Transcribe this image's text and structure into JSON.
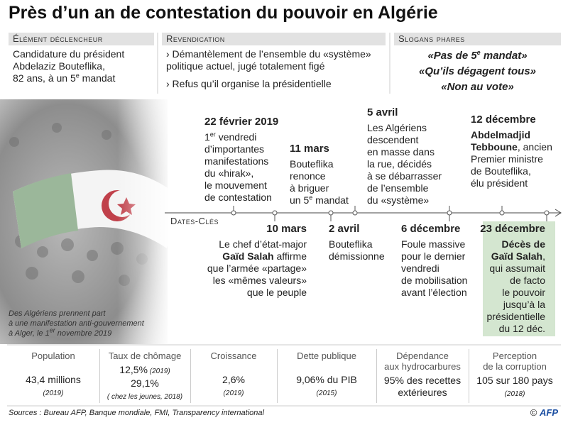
{
  "title": "Près d’un an de contestation du pouvoir en Algérie",
  "panels": [
    {
      "heading": "Élément déclencheur",
      "lines": [
        [
          "Candidature du président"
        ],
        [
          "Abdelaziz Bouteflika,"
        ],
        [
          "82 ans, à un 5",
          "e",
          " mandat"
        ]
      ]
    },
    {
      "heading": "Revendication",
      "lines": [
        [
          "› Démantèlement de l’ensemble du «système»"
        ],
        [
          "politique actuel, jugé totalement figé"
        ],
        [
          "› Refus qu’il organise la présidentielle"
        ]
      ]
    },
    {
      "heading": "Slogans phares",
      "lines": [
        [
          "«Pas de 5",
          "e",
          " mandat»"
        ],
        [
          "«Qu’ils dégagent tous»"
        ],
        [
          "«Non au vote»"
        ]
      ]
    }
  ],
  "timeline": {
    "label": "Dates-Clés",
    "above": [
      {
        "date": "22 février 2019",
        "lines": [
          [
            "1",
            "er",
            " vendredi"
          ],
          [
            "d’importantes"
          ],
          [
            "manifestations"
          ],
          [
            "du «hirak»,"
          ],
          [
            "le mouvement"
          ],
          [
            "de contestation"
          ]
        ]
      },
      {
        "date": "11 mars",
        "lines": [
          [
            "Bouteflika"
          ],
          [
            "renonce"
          ],
          [
            "à briguer"
          ],
          [
            "un 5",
            "e",
            " mandat"
          ]
        ]
      },
      {
        "date": "5 avril",
        "lines": [
          [
            "Les Algériens"
          ],
          [
            "descendent"
          ],
          [
            "en masse dans"
          ],
          [
            "la rue, décidés"
          ],
          [
            "à se débarrasser"
          ],
          [
            "de l’ensemble"
          ],
          [
            "du «système»"
          ]
        ]
      },
      {
        "date": "12 décembre",
        "lines": [
          [
            "Abdelmadjid"
          ],
          [
            "Tebboune",
            ", ancien"
          ],
          [
            "Premier ministre"
          ],
          [
            "de Bouteflika,"
          ],
          [
            "élu président"
          ]
        ]
      }
    ],
    "below": [
      {
        "date": "10 mars",
        "lines": [
          [
            "Le chef d’état-major"
          ],
          [
            "Gaïd Salah",
            " affirme"
          ],
          [
            "que l’armée «partage»"
          ],
          [
            "les «mêmes valeurs»"
          ],
          [
            "que le peuple"
          ]
        ]
      },
      {
        "date": "2 avril",
        "lines": [
          [
            "Bouteflika"
          ],
          [
            "démissionne"
          ]
        ]
      },
      {
        "date": "6 décembre",
        "lines": [
          [
            "Foule massive"
          ],
          [
            "pour le dernier"
          ],
          [
            "vendredi"
          ],
          [
            "de mobilisation"
          ],
          [
            "avant l’élection"
          ]
        ]
      },
      {
        "date": "23 décembre",
        "lines": [
          [
            "Décès de"
          ],
          [
            "Gaïd Salah",
            ","
          ],
          [
            "qui assumait"
          ],
          [
            "de facto"
          ],
          [
            "le pouvoir"
          ],
          [
            "jusqu’à la"
          ],
          [
            "présidentielle"
          ],
          [
            "du 12 déc."
          ]
        ]
      }
    ]
  },
  "caption": [
    [
      "Des Algériens prennent part"
    ],
    [
      "à une manifestation anti-gouvernement"
    ],
    [
      "à Alger, le 1",
      "er",
      " novembre 2019"
    ]
  ],
  "stats": [
    {
      "label": [
        "Population"
      ],
      "lines": [
        [
          "43,4 millions"
        ],
        [
          "(2019)"
        ]
      ]
    },
    {
      "label": [
        "Taux de chômage"
      ],
      "lines": [
        [
          "12,5%",
          " (2019)"
        ],
        [
          "29,1%"
        ],
        [
          "( chez les jeunes, 2018)"
        ]
      ]
    },
    {
      "label": [
        "Croissance"
      ],
      "lines": [
        [
          "2,6%"
        ],
        [
          "(2019)"
        ]
      ]
    },
    {
      "label": [
        "Dette publique"
      ],
      "lines": [
        [
          "9,06% du PIB"
        ],
        [
          "(2015)"
        ]
      ]
    },
    {
      "label": [
        "Dépendance",
        "aux hydrocarbures"
      ],
      "lines": [
        [
          "95% des recettes"
        ],
        [
          "extérieures"
        ]
      ]
    },
    {
      "label": [
        "Perception",
        "de la corruption"
      ],
      "lines": [
        [
          "105 sur 180 pays"
        ],
        [
          "(2018)"
        ]
      ]
    }
  ],
  "sources": "Sources : Bureau AFP, Banque mondiale, FMI, Transparency international",
  "credit": [
    "©",
    "AFP"
  ]
}
